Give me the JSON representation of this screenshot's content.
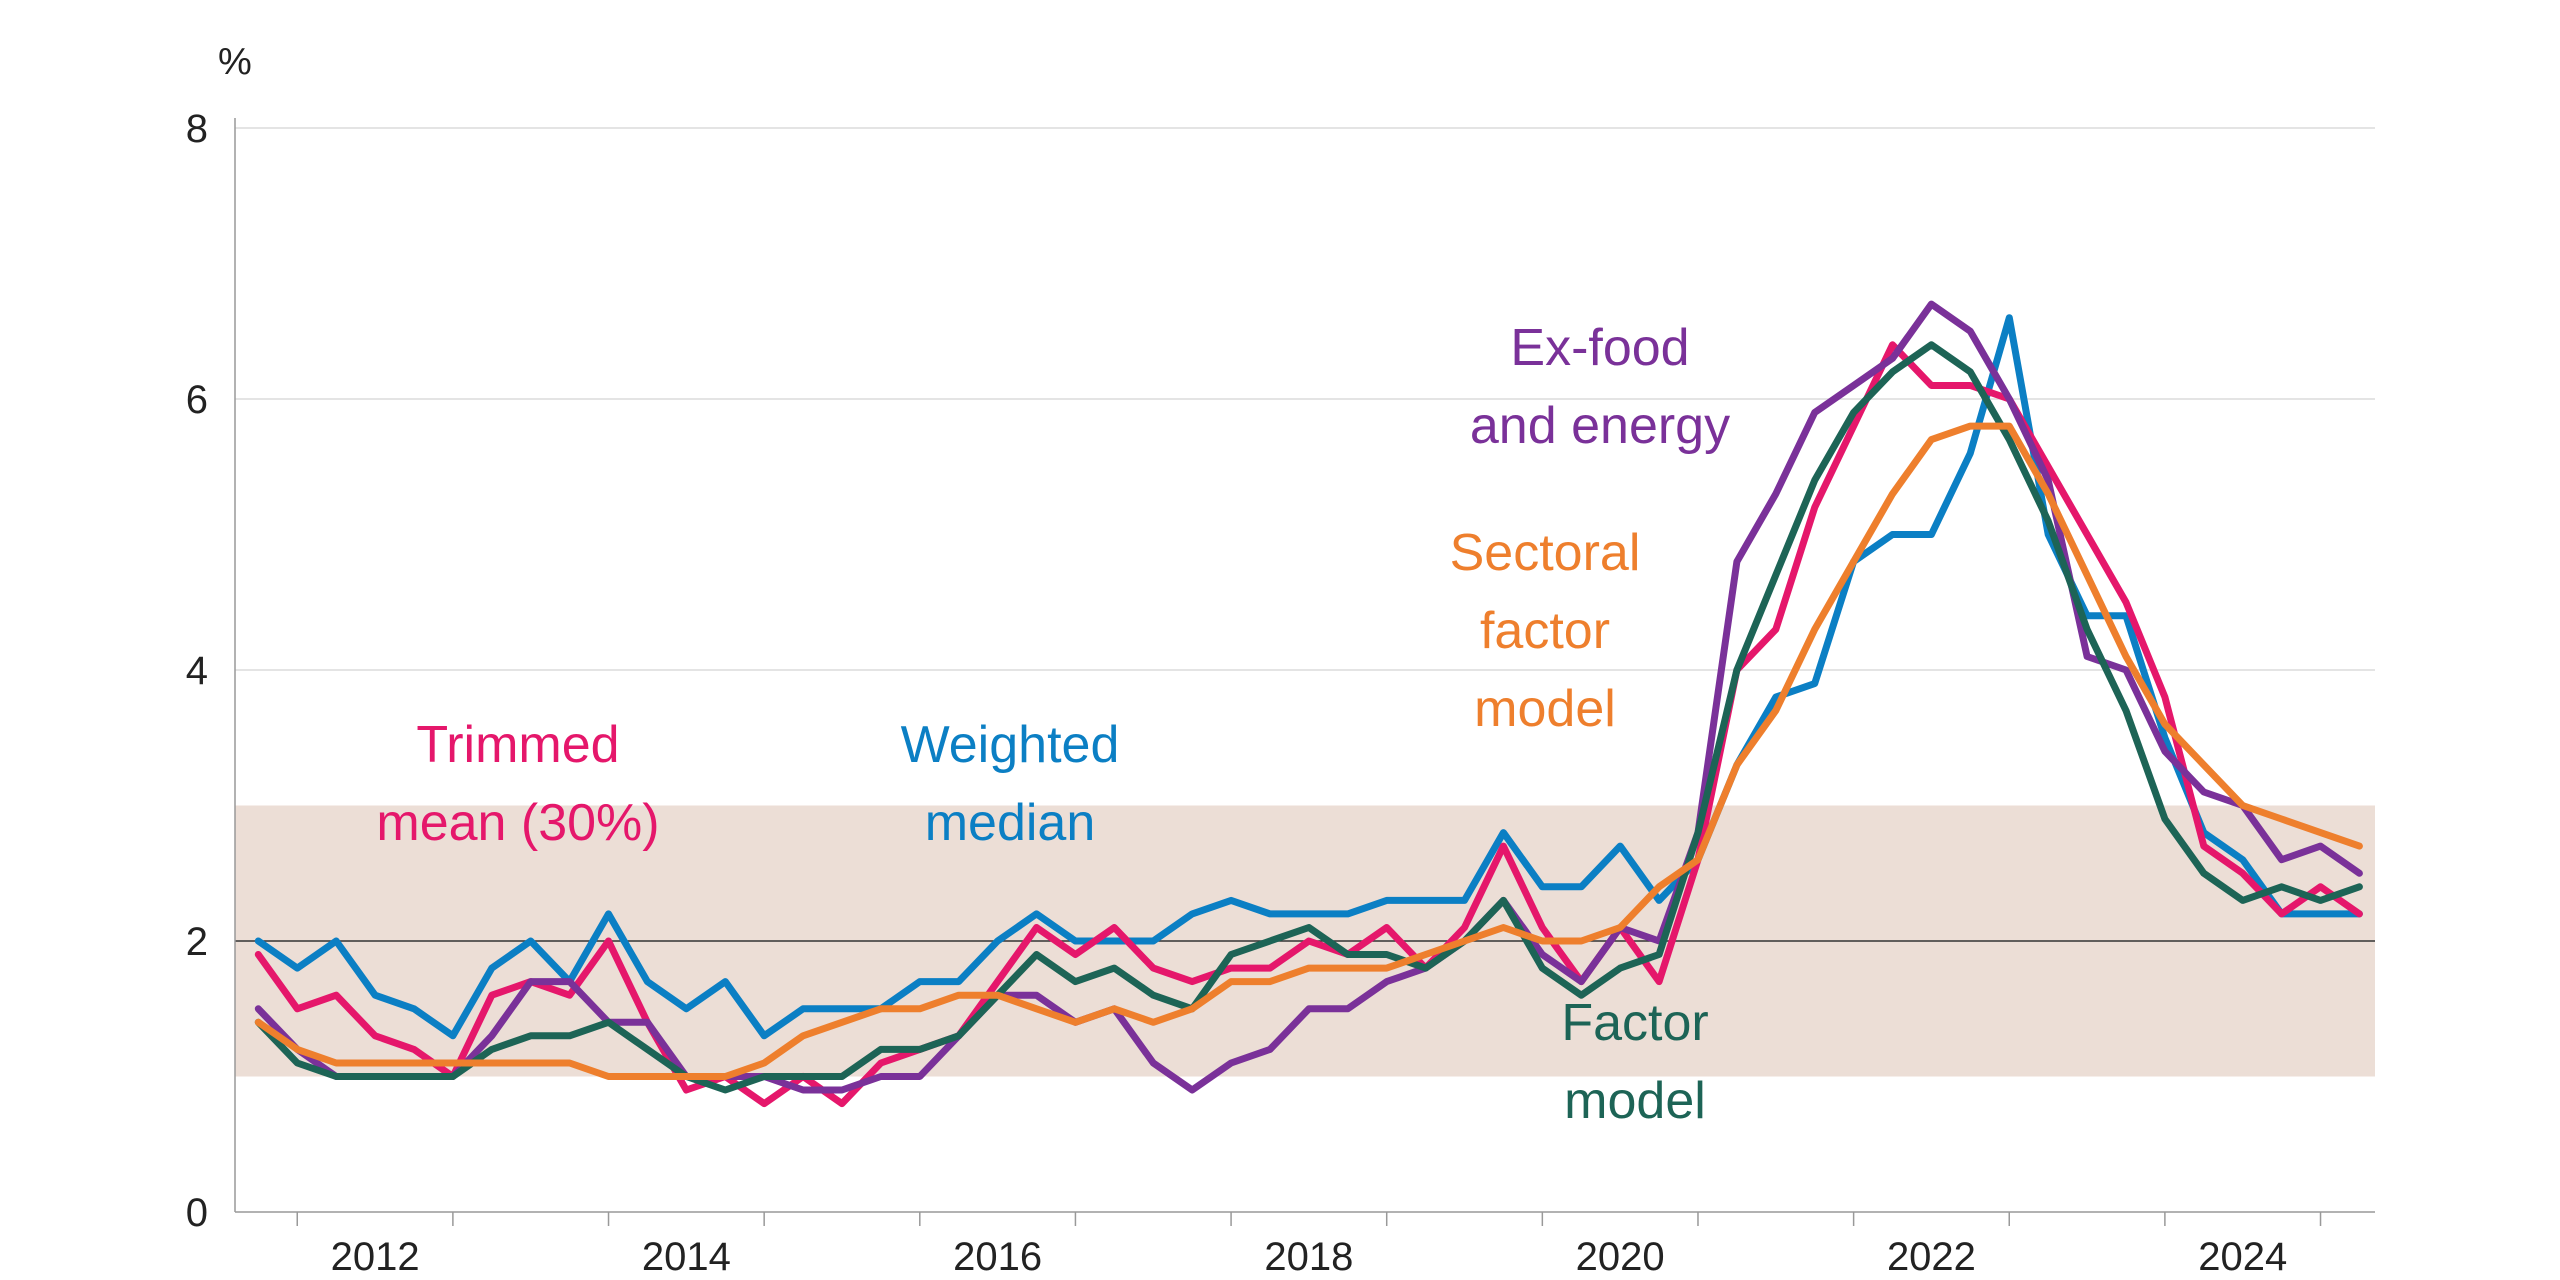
{
  "chart_data": {
    "type": "line",
    "unit_label": "%",
    "ylim": [
      0,
      8
    ],
    "y_ticks": [
      0,
      2,
      4,
      6,
      8
    ],
    "xlim": [
      2011.6,
      2025.35
    ],
    "x_ticks": [
      "2012",
      "2014",
      "2016",
      "2018",
      "2020",
      "2022",
      "2024"
    ],
    "target_band": {
      "low": 1,
      "high": 3,
      "color": "#ECDED6"
    },
    "reference_line": 2,
    "x": [
      2011.75,
      2012.0,
      2012.25,
      2012.5,
      2012.75,
      2013.0,
      2013.25,
      2013.5,
      2013.75,
      2014.0,
      2014.25,
      2014.5,
      2014.75,
      2015.0,
      2015.25,
      2015.5,
      2015.75,
      2016.0,
      2016.25,
      2016.5,
      2016.75,
      2017.0,
      2017.25,
      2017.5,
      2017.75,
      2018.0,
      2018.25,
      2018.5,
      2018.75,
      2019.0,
      2019.25,
      2019.5,
      2019.75,
      2020.0,
      2020.25,
      2020.5,
      2020.75,
      2021.0,
      2021.25,
      2021.5,
      2021.75,
      2022.0,
      2022.25,
      2022.5,
      2022.75,
      2023.0,
      2023.25,
      2023.5,
      2023.75,
      2024.0,
      2024.25,
      2024.5,
      2024.75,
      2025.0,
      2025.25
    ],
    "series": [
      {
        "name": "Weighted median",
        "label_lines": [
          "Weighted",
          "median"
        ],
        "color": "#0B7FC4",
        "values": [
          2.0,
          1.8,
          2.0,
          1.6,
          1.5,
          1.3,
          1.8,
          2.0,
          1.7,
          2.2,
          1.7,
          1.5,
          1.7,
          1.3,
          1.5,
          1.5,
          1.5,
          1.7,
          1.7,
          2.0,
          2.2,
          2.0,
          2.0,
          2.0,
          2.2,
          2.3,
          2.2,
          2.2,
          2.2,
          2.3,
          2.3,
          2.3,
          2.8,
          2.4,
          2.4,
          2.7,
          2.3,
          2.6,
          3.3,
          3.8,
          3.9,
          4.8,
          5.0,
          5.0,
          5.6,
          6.6,
          5.0,
          4.4,
          4.4,
          3.5,
          2.8,
          2.6,
          2.2,
          2.2,
          2.2
        ]
      },
      {
        "name": "Trimmed mean (30%)",
        "label_lines": [
          "Trimmed",
          "mean (30%)"
        ],
        "color": "#E5176B",
        "values": [
          1.9,
          1.5,
          1.6,
          1.3,
          1.2,
          1.0,
          1.6,
          1.7,
          1.6,
          2.0,
          1.4,
          0.9,
          1.0,
          0.8,
          1.0,
          0.8,
          1.1,
          1.2,
          1.3,
          1.7,
          2.1,
          1.9,
          2.1,
          1.8,
          1.7,
          1.8,
          1.8,
          2.0,
          1.9,
          2.1,
          1.8,
          2.1,
          2.7,
          2.1,
          1.7,
          2.1,
          1.7,
          2.6,
          4.0,
          4.3,
          5.2,
          5.8,
          6.4,
          6.1,
          6.1,
          6.0,
          5.5,
          5.0,
          4.5,
          3.8,
          2.7,
          2.5,
          2.2,
          2.4,
          2.2
        ]
      },
      {
        "name": "Ex-food and energy",
        "label_lines": [
          "Ex-food",
          "and energy"
        ],
        "color": "#7A3199",
        "values": [
          1.5,
          1.2,
          1.0,
          1.0,
          1.0,
          1.0,
          1.3,
          1.7,
          1.7,
          1.4,
          1.4,
          1.0,
          1.0,
          1.0,
          0.9,
          0.9,
          1.0,
          1.0,
          1.3,
          1.6,
          1.6,
          1.4,
          1.5,
          1.1,
          0.9,
          1.1,
          1.2,
          1.5,
          1.5,
          1.7,
          1.8,
          2.0,
          2.3,
          1.9,
          1.7,
          2.1,
          2.0,
          2.8,
          4.8,
          5.3,
          5.9,
          6.1,
          6.3,
          6.7,
          6.5,
          6.0,
          5.4,
          4.1,
          4.0,
          3.4,
          3.1,
          3.0,
          2.6,
          2.7,
          2.5
        ]
      },
      {
        "name": "Factor model",
        "label_lines": [
          "Factor",
          "model"
        ],
        "color": "#1D6456",
        "values": [
          1.4,
          1.1,
          1.0,
          1.0,
          1.0,
          1.0,
          1.2,
          1.3,
          1.3,
          1.4,
          1.2,
          1.0,
          0.9,
          1.0,
          1.0,
          1.0,
          1.2,
          1.2,
          1.3,
          1.6,
          1.9,
          1.7,
          1.8,
          1.6,
          1.5,
          1.9,
          2.0,
          2.1,
          1.9,
          1.9,
          1.8,
          2.0,
          2.3,
          1.8,
          1.6,
          1.8,
          1.9,
          2.8,
          4.0,
          4.7,
          5.4,
          5.9,
          6.2,
          6.4,
          6.2,
          5.7,
          5.1,
          4.3,
          3.7,
          2.9,
          2.5,
          2.3,
          2.4,
          2.3,
          2.4
        ]
      },
      {
        "name": "Sectoral factor model",
        "label_lines": [
          "Sectoral",
          "factor",
          "model"
        ],
        "color": "#EE7F2D",
        "values": [
          1.4,
          1.2,
          1.1,
          1.1,
          1.1,
          1.1,
          1.1,
          1.1,
          1.1,
          1.0,
          1.0,
          1.0,
          1.0,
          1.1,
          1.3,
          1.4,
          1.5,
          1.5,
          1.6,
          1.6,
          1.5,
          1.4,
          1.5,
          1.4,
          1.5,
          1.7,
          1.7,
          1.8,
          1.8,
          1.8,
          1.9,
          2.0,
          2.1,
          2.0,
          2.0,
          2.1,
          2.4,
          2.6,
          3.3,
          3.7,
          4.3,
          4.8,
          5.3,
          5.7,
          5.8,
          5.8,
          5.3,
          4.7,
          4.1,
          3.6,
          3.3,
          3.0,
          2.9,
          2.8,
          2.7
        ]
      }
    ]
  }
}
